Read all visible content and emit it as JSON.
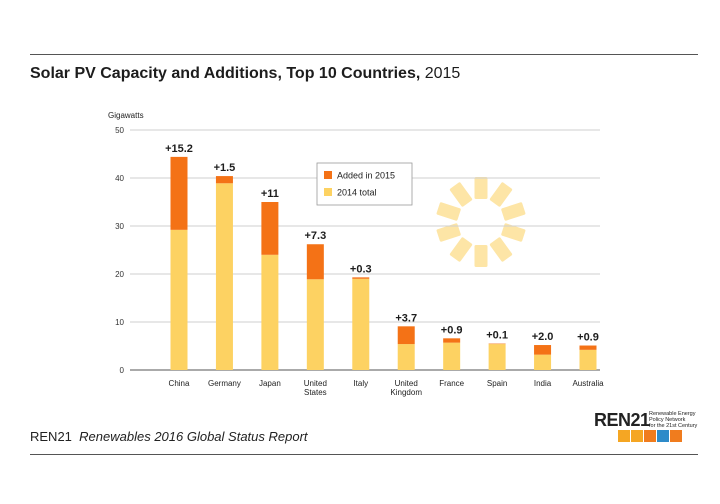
{
  "title": {
    "main": "Solar PV Capacity and Additions, Top 10 Countries,",
    "year": "2015"
  },
  "footer": {
    "org": "REN21",
    "report": "Renewables 2016 Global Status Report"
  },
  "logo": {
    "name": "REN21",
    "tagline": [
      "Renewable Energy",
      "Policy Network",
      "for the 21st Century"
    ],
    "icons": [
      {
        "name": "sun-icon",
        "color": "#f5a623",
        "glyph": "☀"
      },
      {
        "name": "wind-icon",
        "color": "#f5a623",
        "glyph": "✣"
      },
      {
        "name": "power-icon",
        "color": "#f07c1e",
        "glyph": "⏻"
      },
      {
        "name": "water-icon",
        "color": "#2e8bc9",
        "glyph": "≈"
      },
      {
        "name": "biomass-icon",
        "color": "#f07c1e",
        "glyph": "♣"
      }
    ]
  },
  "chart_data": {
    "type": "bar",
    "stacked": true,
    "ylabel": "Gigawatts",
    "ylim": [
      0,
      50
    ],
    "yticks": [
      0,
      10,
      20,
      30,
      40,
      50
    ],
    "grid": true,
    "legend_position": "top-center",
    "colors": {
      "base": "#fdd262",
      "added": "#f47216"
    },
    "categories": [
      [
        "China"
      ],
      [
        "Germany"
      ],
      [
        "Japan"
      ],
      [
        "United",
        "States"
      ],
      [
        "Italy"
      ],
      [
        "United",
        "Kingdom"
      ],
      [
        "France"
      ],
      [
        "Spain"
      ],
      [
        "India"
      ],
      [
        "Australia"
      ]
    ],
    "series": [
      {
        "name": "2014 total",
        "values": [
          29.2,
          38.9,
          24.0,
          18.9,
          19.0,
          5.4,
          5.7,
          5.4,
          3.2,
          4.2
        ]
      },
      {
        "name": "Added in 2015",
        "values": [
          15.2,
          1.5,
          11.0,
          7.3,
          0.3,
          3.7,
          0.9,
          0.1,
          2.0,
          0.9
        ]
      }
    ],
    "annotations": [
      "+15.2",
      "+1.5",
      "+11",
      "+7.3",
      "+0.3",
      "+3.7",
      "+0.9",
      "+0.1",
      "+2.0",
      "+0.9"
    ]
  }
}
